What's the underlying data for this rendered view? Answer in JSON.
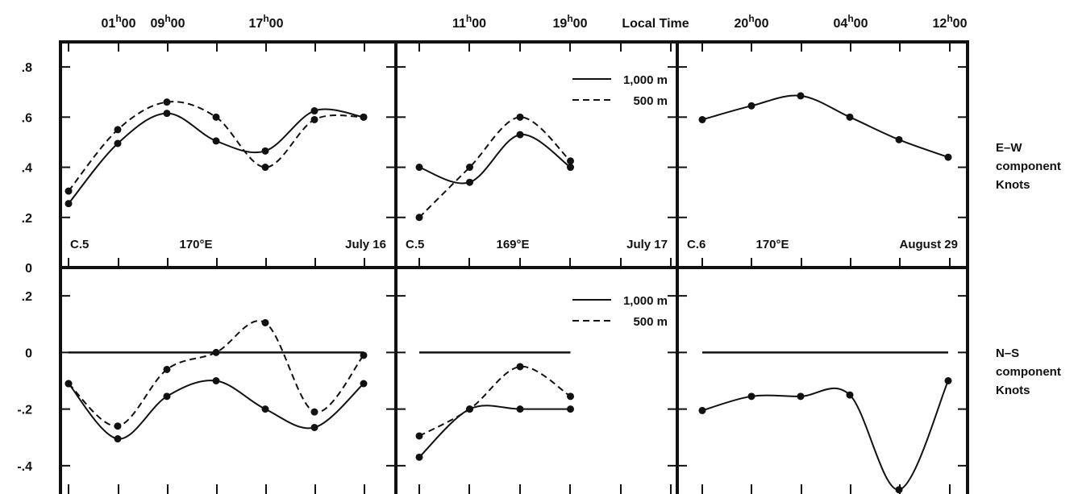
{
  "top_axis": {
    "time_label": "Local Time",
    "ticks": [
      {
        "hh": "01",
        "sup": "h",
        "mm": "00"
      },
      {
        "hh": "09",
        "sup": "h",
        "mm": "00"
      },
      {
        "hh": "17",
        "sup": "h",
        "mm": "00"
      },
      {
        "hh": "11",
        "sup": "h",
        "mm": "00"
      },
      {
        "hh": "19",
        "sup": "h",
        "mm": "00"
      },
      {
        "hh": "20",
        "sup": "h",
        "mm": "00"
      },
      {
        "hh": "04",
        "sup": "h",
        "mm": "00"
      },
      {
        "hh": "12",
        "sup": "h",
        "mm": "00"
      }
    ]
  },
  "side_labels": {
    "top": [
      "E–W",
      "component",
      "Knots"
    ],
    "bottom": [
      "N–S",
      "component",
      "Knots"
    ]
  },
  "chart_data": {
    "type": "line",
    "y_axes": {
      "top": {
        "range": [
          0,
          0.9
        ],
        "tick_labels": [
          ".8",
          ".6",
          ".4",
          ".2",
          "0"
        ]
      },
      "bottom": {
        "range": [
          -0.5,
          0.3
        ],
        "tick_labels": [
          ".2",
          "0",
          "-.2",
          "-.4"
        ]
      }
    },
    "legend": [
      {
        "label": "1,000 m",
        "style": "solid"
      },
      {
        "label": "500 m",
        "style": "dashed"
      }
    ],
    "panels": [
      {
        "station": "C.5",
        "longitude": "170°E",
        "date": "July 16",
        "x": [
          1,
          2,
          3,
          4,
          5,
          6,
          7
        ],
        "ew": [
          {
            "name": "1,000 m",
            "values": [
              0.255,
              0.495,
              0.615,
              0.505,
              0.465,
              0.625,
              0.6
            ]
          },
          {
            "name": "500 m",
            "values": [
              0.305,
              0.55,
              0.66,
              0.6,
              0.4,
              0.59,
              0.6
            ]
          }
        ],
        "ns": [
          {
            "name": "1,000 m",
            "values": [
              -0.11,
              -0.305,
              -0.155,
              -0.1,
              -0.2,
              -0.265,
              -0.11
            ]
          },
          {
            "name": "500 m",
            "values": [
              -0.11,
              -0.26,
              -0.06,
              0.0,
              0.105,
              -0.21,
              -0.01
            ]
          }
        ]
      },
      {
        "station": "C.5",
        "longitude": "169°E",
        "date": "July 17",
        "x": [
          1,
          2,
          3,
          4
        ],
        "ew": [
          {
            "name": "1,000 m",
            "values": [
              0.4,
              0.34,
              0.53,
              0.4
            ]
          },
          {
            "name": "500 m",
            "values": [
              0.2,
              0.4,
              0.6,
              0.425
            ]
          }
        ],
        "ns": [
          {
            "name": "1,000 m",
            "values": [
              -0.37,
              -0.2,
              -0.2,
              -0.2
            ]
          },
          {
            "name": "500 m",
            "values": [
              -0.295,
              -0.2,
              -0.05,
              -0.155
            ]
          }
        ],
        "show_legend": true
      },
      {
        "station": "C.6",
        "longitude": "170°E",
        "date": "August 29",
        "x": [
          1,
          2,
          3,
          4,
          5,
          6
        ],
        "ew": [
          {
            "name": "1,000 m",
            "values": [
              0.59,
              0.645,
              0.685,
              0.6,
              0.51,
              0.44
            ]
          }
        ],
        "ns": [
          {
            "name": "1,000 m",
            "values": [
              -0.205,
              -0.155,
              -0.155,
              -0.15,
              -0.485,
              -0.1
            ]
          }
        ]
      }
    ]
  }
}
